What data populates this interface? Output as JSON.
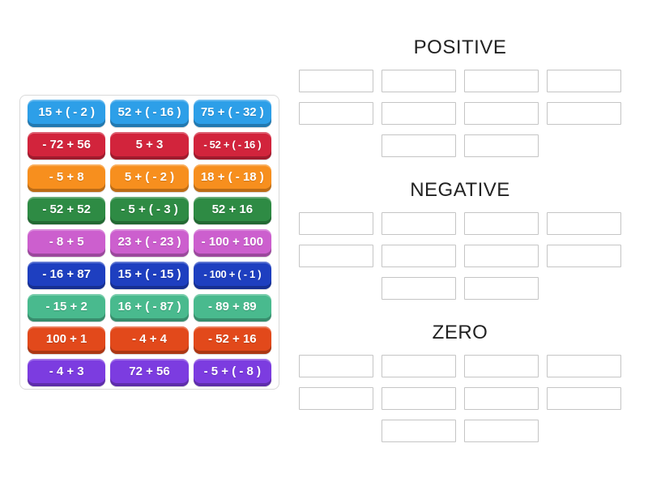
{
  "board": {
    "tiles": [
      {
        "label": "15 + ( - 2 )",
        "color": "#2D9FE8"
      },
      {
        "label": "52 + ( - 16 )",
        "color": "#2D9FE8"
      },
      {
        "label": "75 + ( - 32 )",
        "color": "#2D9FE8"
      },
      {
        "label": "- 72 + 56",
        "color": "#D2243C"
      },
      {
        "label": "5 + 3",
        "color": "#D2243C"
      },
      {
        "label": "- 52 + ( - 16 )",
        "color": "#D2243C"
      },
      {
        "label": "- 5 + 8",
        "color": "#F78F1E"
      },
      {
        "label": "5 + ( - 2 )",
        "color": "#F78F1E"
      },
      {
        "label": "18 + ( - 18 )",
        "color": "#F78F1E"
      },
      {
        "label": "- 52 + 52",
        "color": "#2E8B44"
      },
      {
        "label": "- 5 + ( - 3 )",
        "color": "#2E8B44"
      },
      {
        "label": "52 + 16",
        "color": "#2E8B44"
      },
      {
        "label": "- 8 + 5",
        "color": "#CC5FCE"
      },
      {
        "label": "23 + ( - 23 )",
        "color": "#CC5FCE"
      },
      {
        "label": "- 100 + 100",
        "color": "#CC5FCE"
      },
      {
        "label": "- 16 + 87",
        "color": "#1E3FC0"
      },
      {
        "label": "15 + ( - 15 )",
        "color": "#1E3FC0"
      },
      {
        "label": "- 100 + ( - 1 )",
        "color": "#1E3FC0"
      },
      {
        "label": "- 15 + 2",
        "color": "#49BA8E"
      },
      {
        "label": "16 + ( - 87 )",
        "color": "#49BA8E"
      },
      {
        "label": "- 89 + 89",
        "color": "#49BA8E"
      },
      {
        "label": "100 + 1",
        "color": "#E2491B"
      },
      {
        "label": "- 4 + 4",
        "color": "#E2491B"
      },
      {
        "label": "- 52 + 16",
        "color": "#E2491B"
      },
      {
        "label": "- 4 + 3",
        "color": "#7C3CE0"
      },
      {
        "label": "72 + 56",
        "color": "#7C3CE0"
      },
      {
        "label": "- 5 + ( - 8 )",
        "color": "#7C3CE0"
      }
    ]
  },
  "groups": [
    {
      "id": "positive",
      "title": "POSITIVE",
      "slots": 10
    },
    {
      "id": "negative",
      "title": "NEGATIVE",
      "slots": 10
    },
    {
      "id": "zero",
      "title": "ZERO",
      "slots": 10
    }
  ]
}
